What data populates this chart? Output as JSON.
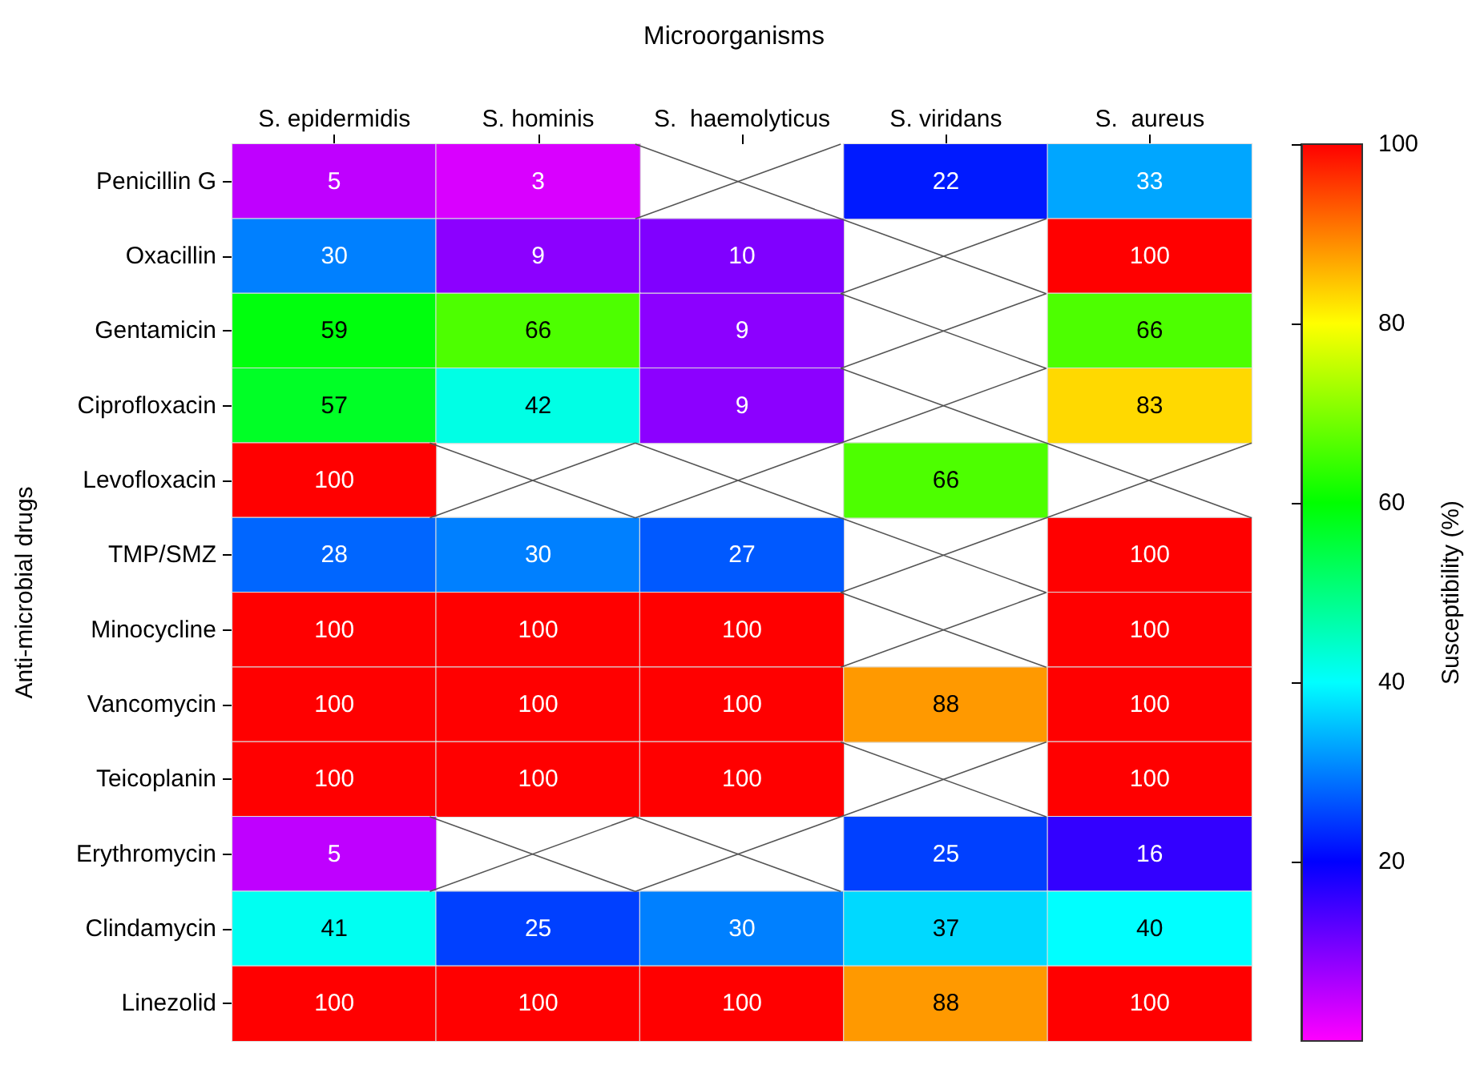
{
  "chart_data": {
    "type": "heatmap",
    "title": "Microorganisms",
    "ylabel": "Anti-microbial drugs",
    "clabel": "Susceptibility (%)",
    "categories": [
      "S. epidermidis",
      "S. hominis",
      "S.  haemolyticus",
      "S. viridans",
      "S.  aureus"
    ],
    "y_categories": [
      "Penicillin G",
      "Oxacillin",
      "Gentamicin",
      "Ciprofloxacin",
      "Levofloxacin",
      "TMP/SMZ",
      "Minocycline",
      "Vancomycin",
      "Teicoplanin",
      "Erythromycin",
      "Clindamycin",
      "Linezolid"
    ],
    "cells": [
      [
        5,
        3,
        null,
        22,
        33
      ],
      [
        30,
        9,
        10,
        null,
        100
      ],
      [
        59,
        66,
        9,
        null,
        66
      ],
      [
        57,
        42,
        9,
        null,
        83
      ],
      [
        100,
        null,
        null,
        66,
        null
      ],
      [
        28,
        30,
        27,
        null,
        100
      ],
      [
        100,
        100,
        100,
        null,
        100
      ],
      [
        100,
        100,
        100,
        88,
        100
      ],
      [
        100,
        100,
        100,
        null,
        100
      ],
      [
        5,
        null,
        null,
        25,
        16
      ],
      [
        41,
        25,
        30,
        37,
        40
      ],
      [
        100,
        100,
        100,
        88,
        100
      ]
    ],
    "colors": [
      "#ff00ff",
      "#0000ff",
      "#00ffff",
      "#00ff00",
      "#ffff00",
      "#ff0000"
    ],
    "clim": [
      0,
      100
    ],
    "cticks": [
      20,
      40,
      60,
      80,
      100
    ],
    "data_labels": true
  }
}
